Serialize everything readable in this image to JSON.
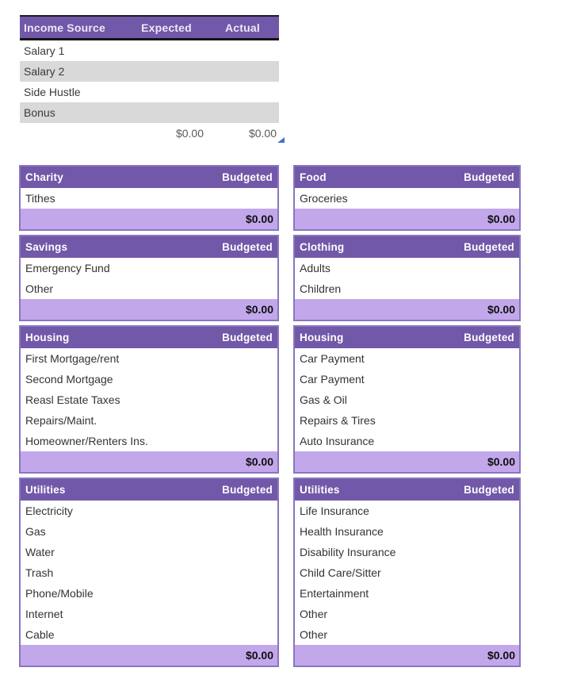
{
  "colors": {
    "header_purple": "#7158A8",
    "total_row_purple": "#C2A8EB",
    "section_border_purple": "#8876C1",
    "stripe_gray": "#D9D9D9",
    "income_total_text": "#595959",
    "fill_handle_blue": "#4472C4",
    "header_underline_black": "#141414"
  },
  "income_table": {
    "headers": [
      "Income Source",
      "Expected",
      "Actual"
    ],
    "rows": [
      "Salary 1",
      "Salary 2",
      "Side Hustle",
      "Bonus"
    ],
    "totals": {
      "expected": "$0.00",
      "actual": "$0.00"
    }
  },
  "budget_columns": {
    "left": [
      {
        "title": "Charity",
        "budgeted_label": "Budgeted",
        "items": [
          "Tithes"
        ],
        "total": "$0.00"
      },
      {
        "title": "Savings",
        "budgeted_label": "Budgeted",
        "items": [
          "Emergency Fund",
          "Other"
        ],
        "total": "$0.00"
      },
      {
        "title": "Housing",
        "budgeted_label": "Budgeted",
        "items": [
          "First Mortgage/rent",
          "Second Mortgage",
          "Reasl Estate Taxes",
          "Repairs/Maint.",
          "Homeowner/Renters Ins."
        ],
        "total": "$0.00"
      },
      {
        "title": "Utilities",
        "budgeted_label": "Budgeted",
        "items": [
          "Electricity",
          "Gas",
          "Water",
          "Trash",
          "Phone/Mobile",
          "Internet",
          "Cable"
        ],
        "total": "$0.00"
      }
    ],
    "right": [
      {
        "title": "Food",
        "budgeted_label": "Budgeted",
        "items": [
          "Groceries"
        ],
        "total": "$0.00"
      },
      {
        "title": "Clothing",
        "budgeted_label": "Budgeted",
        "items": [
          "Adults",
          "Children"
        ],
        "total": "$0.00"
      },
      {
        "title": "Housing",
        "budgeted_label": "Budgeted",
        "items": [
          "Car Payment",
          "Car Payment",
          "Gas & Oil",
          "Repairs & Tires",
          "Auto Insurance"
        ],
        "total": "$0.00"
      },
      {
        "title": "Utilities",
        "budgeted_label": "Budgeted",
        "items": [
          "Life Insurance",
          "Health Insurance",
          "Disability Insurance",
          "Child Care/Sitter",
          "Entertainment",
          "Other",
          "Other"
        ],
        "total": "$0.00"
      }
    ]
  }
}
